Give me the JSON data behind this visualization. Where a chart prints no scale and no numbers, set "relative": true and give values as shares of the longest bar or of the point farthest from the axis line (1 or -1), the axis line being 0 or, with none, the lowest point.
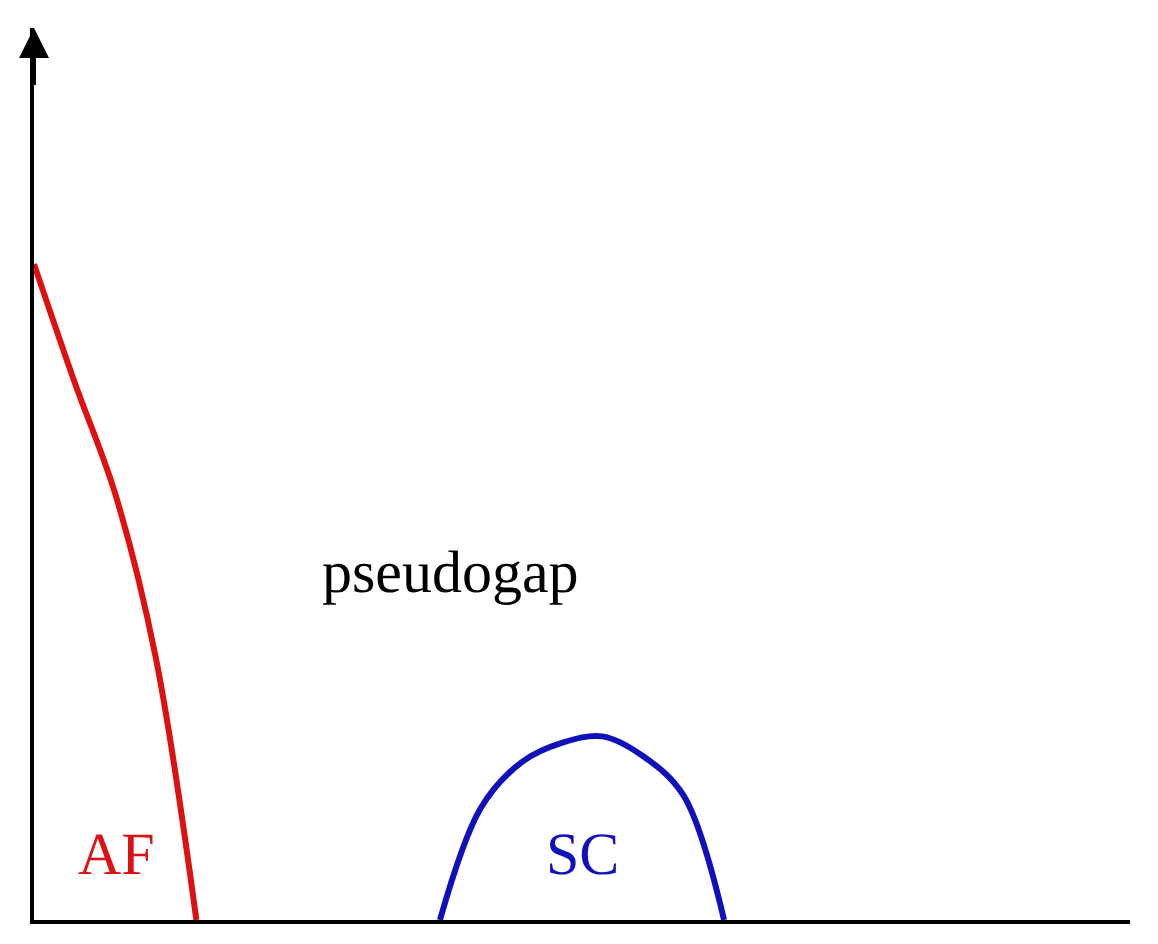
{
  "chart_data": {
    "type": "line",
    "relative": true,
    "legend": false,
    "marker": "none",
    "line_style": "solid",
    "categories": [
      null,
      null,
      null,
      null,
      null,
      null,
      null,
      null,
      null,
      null,
      null,
      null,
      null,
      null,
      null,
      null,
      null,
      null,
      null,
      null,
      null,
      null,
      null,
      null,
      null,
      null,
      null,
      null
    ],
    "series": [
      {
        "name": "AF",
        "color": "#dd1111",
        "values": [
          1,
          0.82,
          0.65,
          0.4,
          0,
          null,
          null,
          null,
          null,
          null,
          null,
          null,
          null,
          null,
          null,
          null,
          null,
          null,
          null,
          null,
          null,
          null,
          null,
          null,
          null,
          null,
          null,
          null
        ]
      },
      {
        "name": "SC",
        "color": "#1111bb",
        "values": [
          null,
          null,
          null,
          null,
          null,
          null,
          null,
          null,
          null,
          null,
          0,
          0.17,
          0.24,
          0.27,
          0.28,
          0.25,
          0.19,
          0,
          null,
          null,
          null,
          null,
          null,
          null,
          null,
          null,
          null,
          null
        ]
      }
    ],
    "annotations": [
      "pseudogap"
    ]
  }
}
